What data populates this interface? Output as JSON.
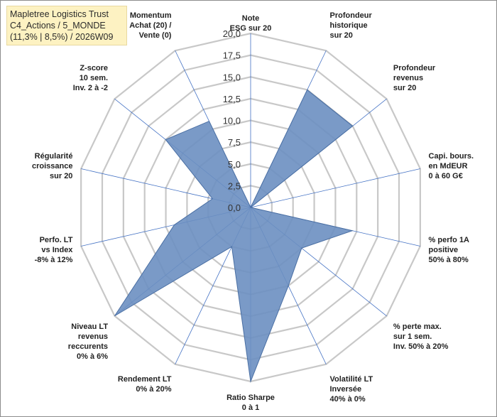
{
  "chart_data": {
    "type": "radar",
    "title_lines": [
      "Mapletree Logistics Trust",
      "C4_Actions / 5_MONDE",
      "(11,3% | 8,5%) / 2026W09"
    ],
    "rlim": [
      0,
      20
    ],
    "ticks": [
      "0,0",
      "2,5",
      "5,0",
      "7,5",
      "10,0",
      "12,5",
      "15,0",
      "17,5",
      "20,0"
    ],
    "tick_values": [
      0,
      2.5,
      5,
      7.5,
      10,
      12.5,
      15,
      17.5,
      20
    ],
    "grid": true,
    "colors": {
      "fill": "#6b8fc1",
      "fill_stroke": "#4a6fa3",
      "grid": "#c8c8c8",
      "spoke": "#4472c4"
    },
    "categories": [
      [
        "Note",
        "ESG sur 20"
      ],
      [
        "Profondeur",
        "historique",
        "sur 20"
      ],
      [
        "Profondeur",
        "revenus",
        "sur 20"
      ],
      [
        "Capi. bours.",
        "en MdEUR",
        "0 à 60 G€"
      ],
      [
        "% perfo 1A",
        "positive",
        "50% à 80%"
      ],
      [
        "% perte max.",
        "sur 1 sem.",
        "Inv. 50% à 20%"
      ],
      [
        "Volatilité LT",
        "Inversée",
        "40% à 0%"
      ],
      [
        "Ratio Sharpe",
        "0 à 1"
      ],
      [
        "Rendement LT",
        "0% à 20%"
      ],
      [
        "Niveau LT",
        "revenus",
        "reccurents",
        "0% à 6%"
      ],
      [
        "Perfo. LT",
        "vs Index",
        "-8% à 12%"
      ],
      [
        "Régularité",
        "croissance",
        "sur 20"
      ],
      [
        "Z-score",
        "10 sem.",
        "Inv. 2 à -2"
      ],
      [
        "Momentum",
        "Achat (20) /",
        "Vente (0)"
      ]
    ],
    "series": [
      {
        "name": "Mapletree Logistics Trust",
        "values": [
          0,
          15,
          15,
          0,
          12,
          7.5,
          10,
          20,
          5,
          20,
          9,
          4.5,
          12.5,
          11
        ]
      }
    ]
  }
}
